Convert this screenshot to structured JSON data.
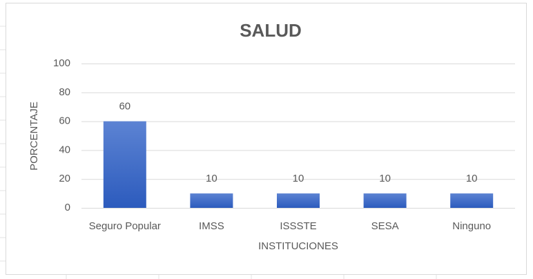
{
  "chart_data": {
    "type": "bar",
    "title": "SALUD",
    "x_label": "INSTITUCIONES",
    "y_label": "PORCENTAJE",
    "categories": [
      "Seguro Popular",
      "IMSS",
      "ISSSTE",
      "SESA",
      "Ninguno"
    ],
    "values": [
      60,
      10,
      10,
      10,
      10
    ],
    "color": "#4472c4",
    "ylim": [
      0,
      100
    ],
    "yticks": [
      0,
      20,
      40,
      60,
      80,
      100
    ],
    "grid": true
  }
}
